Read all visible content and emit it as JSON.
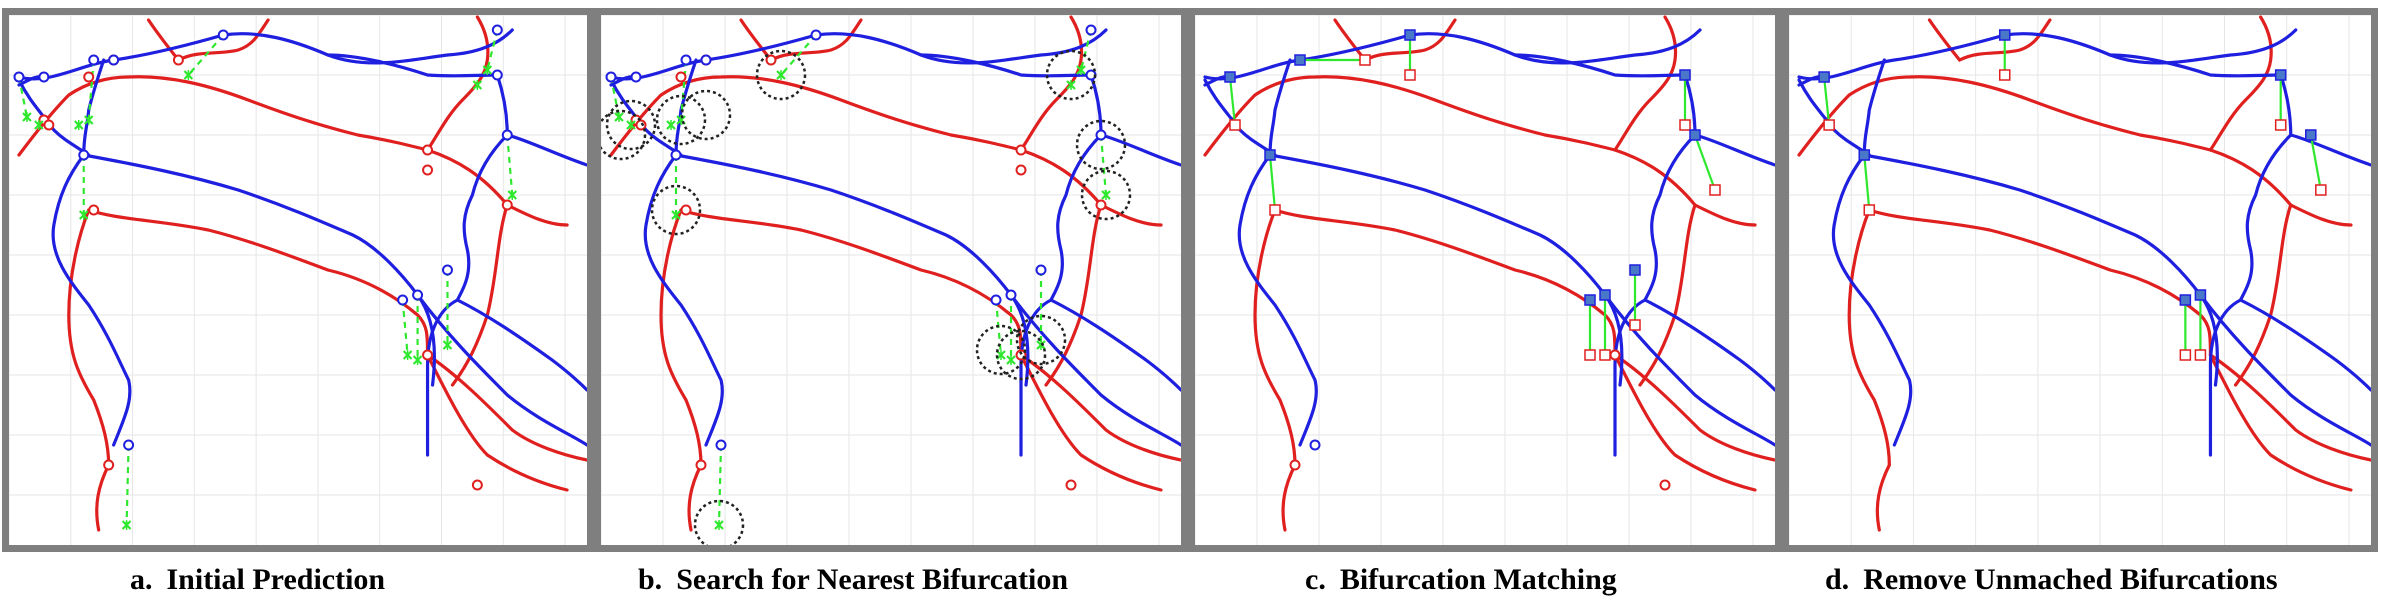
{
  "panels": [
    {
      "id": "a",
      "prefix": "a.",
      "title": "Initial Prediction",
      "mode": "initial"
    },
    {
      "id": "b",
      "prefix": "b.",
      "title": "Search for Nearest Bifurcation",
      "mode": "search"
    },
    {
      "id": "c",
      "prefix": "c.",
      "title": "Bifurcation Matching",
      "mode": "matching"
    },
    {
      "id": "d",
      "prefix": "d.",
      "title": "Remove Unmached Bifurcations",
      "mode": "remove"
    }
  ],
  "colors": {
    "border": "#7f7f7f",
    "grid": "#e6e6e6",
    "blue_vessel": "#1f1fe0",
    "red_vessel": "#e01f1f",
    "prediction_marker": "#2ee82e",
    "match_line": "#2ee82e",
    "search_circle": "#222222",
    "matched_square_fill": "#4a78c8"
  },
  "icons": {
    "prediction": "green-x-marker-icon",
    "search": "dashed-circle-icon",
    "bifurcation_blue": "blue-circle-icon",
    "bifurcation_red": "red-circle-icon",
    "matched_blue": "blue-square-icon",
    "matched_red": "red-square-icon"
  }
}
